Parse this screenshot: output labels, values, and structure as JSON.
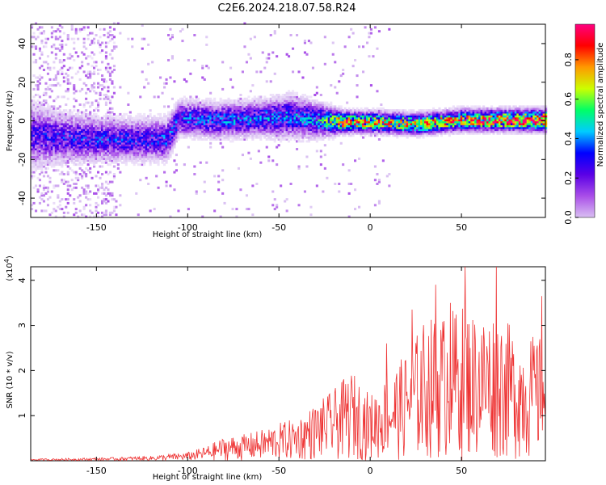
{
  "title": "C2E6.2024.218.07.58.R24",
  "colors": {
    "snr_line": "#ee3333",
    "colormap": [
      "#ffffff",
      "#d9bff2",
      "#a94ee8",
      "#5a00e6",
      "#0000ff",
      "#00ccff",
      "#00ff66",
      "#ccff00",
      "#ff9900",
      "#ff0000",
      "#ff0080"
    ]
  },
  "chart_data": [
    {
      "type": "heatmap",
      "title": "",
      "xlabel": "Height of straight line (km)",
      "ylabel": "Frequency (Hz)",
      "xlim": [
        -186,
        96
      ],
      "ylim": [
        -50,
        50
      ],
      "x_ticks": [
        -150,
        -100,
        -50,
        0,
        50
      ],
      "y_ticks": [
        -40,
        -20,
        0,
        20,
        40
      ],
      "colorbar": {
        "label": "Normalized spectral amplitude",
        "range": [
          0,
          0.98
        ],
        "ticks": [
          "0.0",
          "0.2",
          "0.4",
          "0.6",
          "0.8"
        ]
      },
      "ridge": [
        {
          "x": -186,
          "y": -8,
          "spread": 9,
          "amp": 0.3
        },
        {
          "x": -170,
          "y": -9,
          "spread": 7,
          "amp": 0.32
        },
        {
          "x": -150,
          "y": -10,
          "spread": 6,
          "amp": 0.34
        },
        {
          "x": -130,
          "y": -10,
          "spread": 6,
          "amp": 0.33
        },
        {
          "x": -112,
          "y": -10,
          "spread": 6,
          "amp": 0.36
        },
        {
          "x": -105,
          "y": 1,
          "spread": 5,
          "amp": 0.38
        },
        {
          "x": -85,
          "y": 0,
          "spread": 5,
          "amp": 0.38
        },
        {
          "x": -60,
          "y": 1,
          "spread": 5,
          "amp": 0.4
        },
        {
          "x": -45,
          "y": 2,
          "spread": 6,
          "amp": 0.4
        },
        {
          "x": -30,
          "y": 0,
          "spread": 5,
          "amp": 0.42
        },
        {
          "x": -15,
          "y": -1,
          "spread": 3,
          "amp": 0.75
        },
        {
          "x": 0,
          "y": -1,
          "spread": 3,
          "amp": 0.7
        },
        {
          "x": 25,
          "y": -2,
          "spread": 3,
          "amp": 0.7
        },
        {
          "x": 50,
          "y": 0,
          "spread": 3,
          "amp": 0.75
        },
        {
          "x": 70,
          "y": 0,
          "spread": 3,
          "amp": 0.85
        },
        {
          "x": 96,
          "y": 0,
          "spread": 3,
          "amp": 0.9
        }
      ],
      "scatter_bands": [
        {
          "x_from": -186,
          "x_to": -170,
          "y_from": -50,
          "y_to": 48,
          "amp": 0.18
        },
        {
          "x_from": -170,
          "x_to": -140,
          "y_from": -50,
          "y_to": 48,
          "amp": 0.2
        }
      ]
    },
    {
      "type": "line",
      "title": "",
      "xlabel": "Height of straight line (km)",
      "ylabel": "SNR (10 * v/v)",
      "y_multiplier": "(x10^4)",
      "xlim": [
        -186,
        96
      ],
      "ylim": [
        0,
        4.3
      ],
      "x_ticks": [
        -150,
        -100,
        -50,
        0,
        50
      ],
      "y_ticks": [
        1,
        2,
        3,
        4
      ],
      "envelope": [
        {
          "x": -186,
          "y": 0.04
        },
        {
          "x": -150,
          "y": 0.06
        },
        {
          "x": -120,
          "y": 0.1
        },
        {
          "x": -100,
          "y": 0.18
        },
        {
          "x": -90,
          "y": 0.3
        },
        {
          "x": -80,
          "y": 0.5
        },
        {
          "x": -70,
          "y": 0.55
        },
        {
          "x": -60,
          "y": 0.65
        },
        {
          "x": -50,
          "y": 0.8
        },
        {
          "x": -40,
          "y": 0.9
        },
        {
          "x": -30,
          "y": 1.2
        },
        {
          "x": -20,
          "y": 1.5
        },
        {
          "x": -10,
          "y": 1.9
        },
        {
          "x": 0,
          "y": 1.4
        },
        {
          "x": 10,
          "y": 1.8
        },
        {
          "x": 20,
          "y": 2.3
        },
        {
          "x": 30,
          "y": 3.0
        },
        {
          "x": 40,
          "y": 3.1
        },
        {
          "x": 50,
          "y": 3.3
        },
        {
          "x": 60,
          "y": 3.1
        },
        {
          "x": 70,
          "y": 3.2
        },
        {
          "x": 80,
          "y": 2.7
        },
        {
          "x": 96,
          "y": 2.6
        }
      ],
      "peaks": [
        {
          "x": 52,
          "y": 4.3
        },
        {
          "x": 69,
          "y": 4.3
        },
        {
          "x": 36,
          "y": 3.9
        },
        {
          "x": 94,
          "y": 3.65
        },
        {
          "x": 44,
          "y": 3.5
        },
        {
          "x": 23,
          "y": 3.35
        },
        {
          "x": 9,
          "y": 2.6
        }
      ]
    }
  ]
}
